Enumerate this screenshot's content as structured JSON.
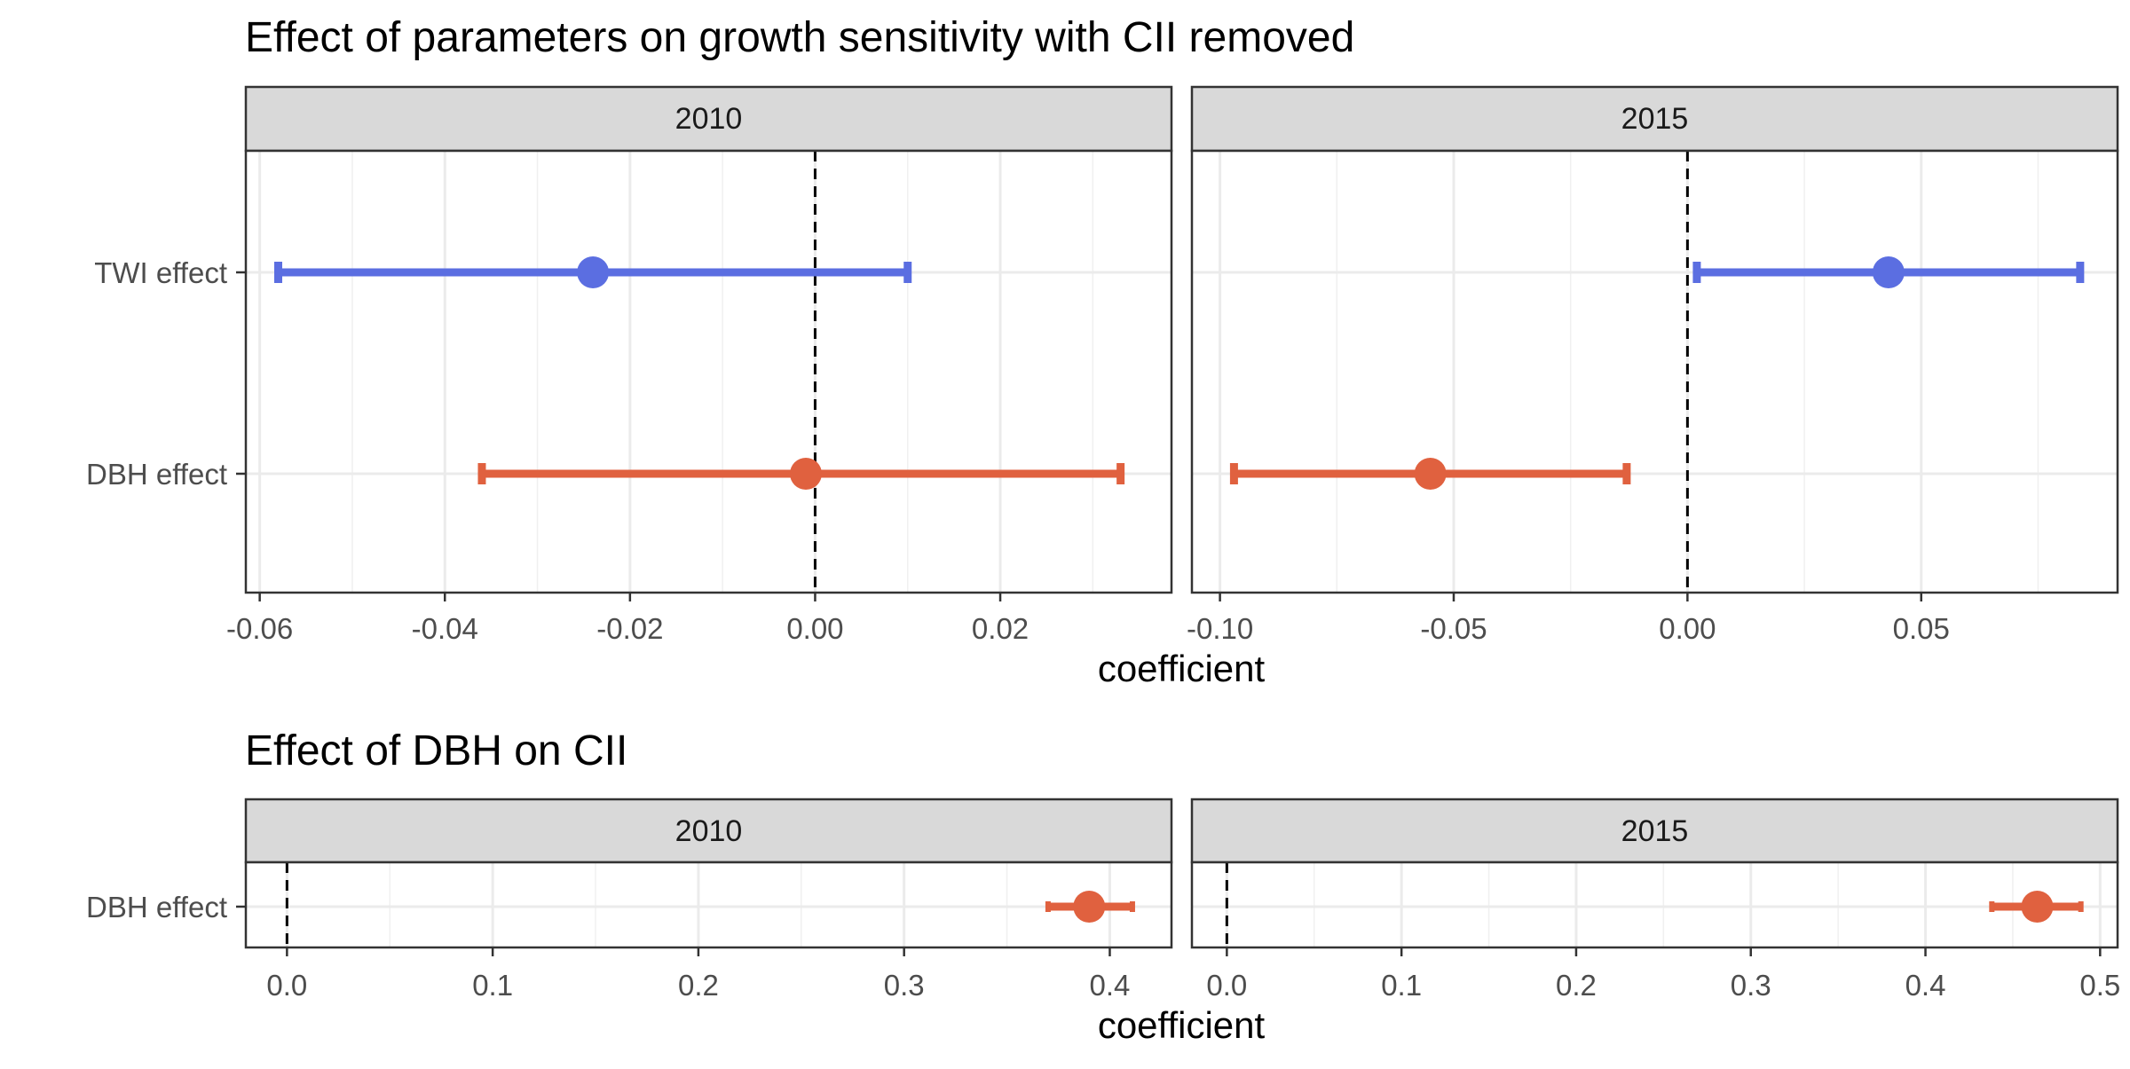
{
  "chart_data": [
    {
      "type": "forest",
      "title": "Effect of parameters on growth sensitivity with CII removed",
      "xlabel": "coefficient",
      "ylabel": "",
      "categories": [
        "TWI effect",
        "DBH effect"
      ],
      "colors": {
        "TWI effect": "#5B6EE1",
        "DBH effect": "#E0613F"
      },
      "grid": true,
      "facets": [
        {
          "label": "2010",
          "xlim": [
            -0.0615,
            0.0385
          ],
          "xticks": [
            -0.06,
            -0.04,
            -0.02,
            0.0,
            0.02
          ],
          "xtick_labels": [
            "-0.06",
            "-0.04",
            "-0.02",
            "0.00",
            "0.02"
          ],
          "reference_line": 0,
          "points": [
            {
              "category": "TWI effect",
              "estimate": -0.024,
              "lower": -0.058,
              "upper": 0.01
            },
            {
              "category": "DBH effect",
              "estimate": -0.001,
              "lower": -0.036,
              "upper": 0.033
            }
          ]
        },
        {
          "label": "2015",
          "xlim": [
            -0.106,
            0.092
          ],
          "xticks": [
            -0.1,
            -0.05,
            0.0,
            0.05
          ],
          "xtick_labels": [
            "-0.10",
            "-0.05",
            "0.00",
            "0.05"
          ],
          "reference_line": 0,
          "points": [
            {
              "category": "TWI effect",
              "estimate": 0.043,
              "lower": 0.002,
              "upper": 0.084
            },
            {
              "category": "DBH effect",
              "estimate": -0.055,
              "lower": -0.097,
              "upper": -0.013
            }
          ]
        }
      ]
    },
    {
      "type": "forest",
      "title": "Effect of DBH on CII",
      "xlabel": "coefficient",
      "ylabel": "",
      "categories": [
        "DBH effect"
      ],
      "colors": {
        "DBH effect": "#E0613F"
      },
      "grid": true,
      "facets": [
        {
          "label": "2010",
          "xlim": [
            -0.02,
            0.43
          ],
          "xticks": [
            0.0,
            0.1,
            0.2,
            0.3,
            0.4
          ],
          "xtick_labels": [
            "0.0",
            "0.1",
            "0.2",
            "0.3",
            "0.4"
          ],
          "reference_line": 0,
          "points": [
            {
              "category": "DBH effect",
              "estimate": 0.39,
              "lower": 0.37,
              "upper": 0.411
            }
          ]
        },
        {
          "label": "2015",
          "xlim": [
            -0.02,
            0.51
          ],
          "xticks": [
            0.0,
            0.1,
            0.2,
            0.3,
            0.4,
            0.5
          ],
          "xtick_labels": [
            "0.0",
            "0.1",
            "0.2",
            "0.3",
            "0.4",
            "0.5"
          ],
          "reference_line": 0,
          "points": [
            {
              "category": "DBH effect",
              "estimate": 0.464,
              "lower": 0.438,
              "upper": 0.489
            }
          ]
        }
      ]
    }
  ]
}
